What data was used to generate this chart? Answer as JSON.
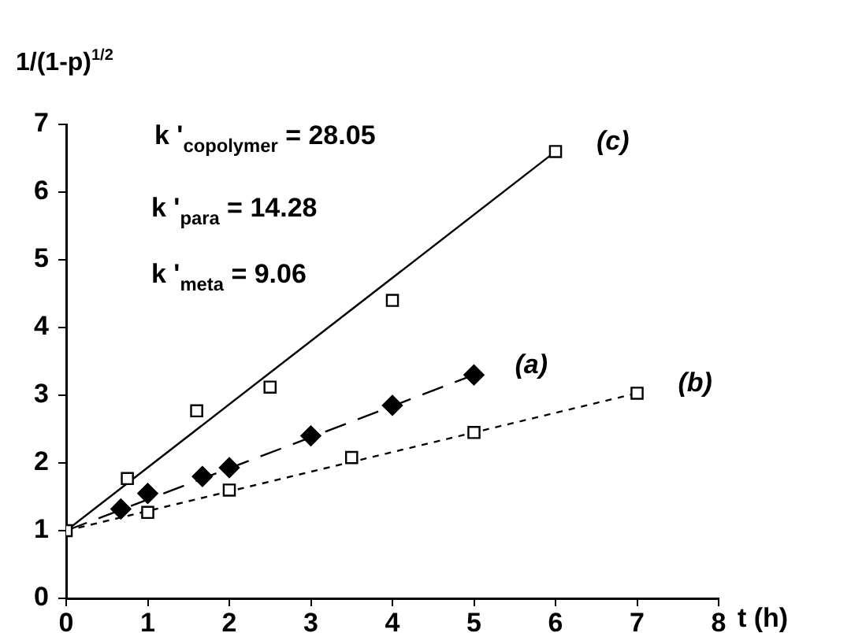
{
  "chart_data": {
    "type": "scatter",
    "ylabel": "1/(1-p)$^{1/2}$",
    "xlabel": "t (h)",
    "xlim": [
      0,
      8
    ],
    "xticks": [
      0,
      1,
      2,
      3,
      4,
      5,
      6,
      7,
      8
    ],
    "ylim": [
      0,
      7
    ],
    "yticks": [
      0,
      1,
      2,
      3,
      4,
      5,
      6,
      7
    ],
    "grid": false,
    "legend": false,
    "annotations": [
      "k '$_{copolymer}$ = 28.05",
      "k '$_{para}$ = 14.28",
      "k '$_{meta}$ = 9.06"
    ],
    "series": [
      {
        "name": "(c)",
        "marker": "square",
        "color": "#000000",
        "x": [
          0.75,
          1.6,
          2.5,
          4,
          6
        ],
        "values": [
          1.77,
          2.77,
          3.12,
          4.4,
          6.6
        ]
      },
      {
        "name": "(a)",
        "marker": "diamond",
        "color": "#000000",
        "x": [
          0.67,
          1,
          1.67,
          2,
          3,
          4,
          5
        ],
        "values": [
          1.32,
          1.55,
          1.8,
          1.93,
          2.4,
          2.85,
          3.3
        ]
      },
      {
        "name": "(b)",
        "marker": "square",
        "color": "#000000",
        "x": [
          0,
          1,
          2,
          3.5,
          5,
          7
        ],
        "values": [
          1,
          1.27,
          1.6,
          2.08,
          2.45,
          3.03
        ]
      },
      {
        "type": "line",
        "line_style": "solid",
        "color": "#000000",
        "x": [
          0,
          6
        ],
        "values": [
          1,
          6.6
        ]
      },
      {
        "type": "line",
        "line_style": "dashed",
        "color": "#000000",
        "x": [
          0,
          5
        ],
        "values": [
          1,
          3.3
        ]
      },
      {
        "type": "line",
        "line_style": "dotted",
        "color": "#000000",
        "x": [
          0,
          7
        ],
        "values": [
          1,
          3.03
        ]
      }
    ]
  }
}
